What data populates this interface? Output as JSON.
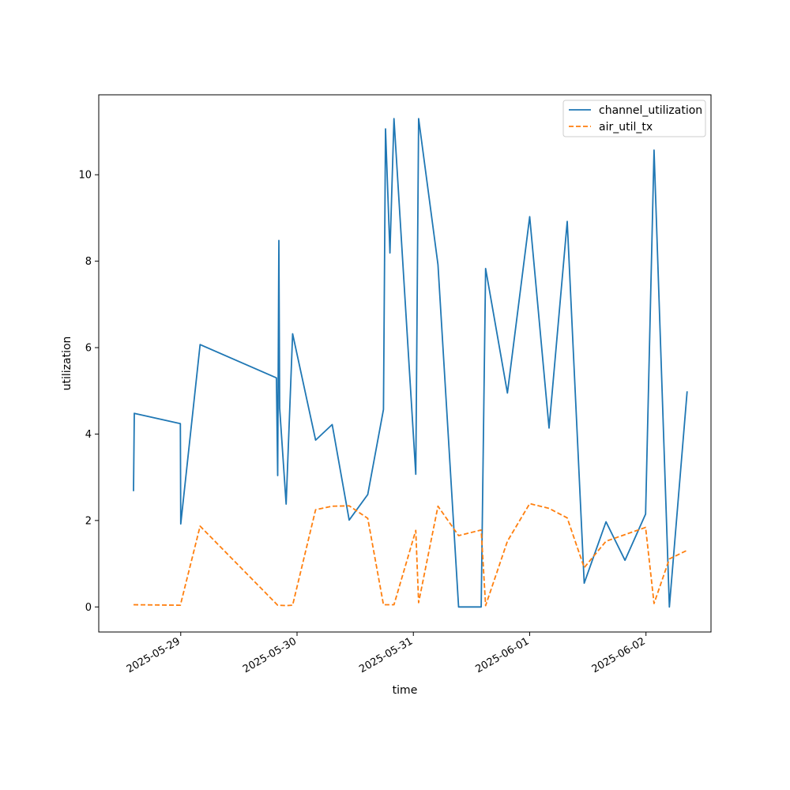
{
  "chart_data": {
    "type": "line",
    "xlabel": "time",
    "ylabel": "utilization",
    "x_ticks": [
      "2025-05-29",
      "2025-05-30",
      "2025-05-31",
      "2025-06-01",
      "2025-06-02"
    ],
    "y_ticks": [
      0,
      2,
      4,
      6,
      8,
      10
    ],
    "xlim": [
      "2025-05-28 07:05",
      "2025-06-02 13:25"
    ],
    "ylim": [
      -0.58,
      11.85
    ],
    "grid": false,
    "legend_position": "top-right",
    "series": [
      {
        "name": "channel_utilization",
        "color": "#1f77b4",
        "dash": "solid",
        "points": [
          [
            "2025-05-28 14:15",
            2.68
          ],
          [
            "2025-05-28 14:25",
            4.48
          ],
          [
            "2025-05-28 23:55",
            4.24
          ],
          [
            "2025-05-29 00:00",
            1.92
          ],
          [
            "2025-05-29 04:00",
            6.07
          ],
          [
            "2025-05-29 19:45",
            5.3
          ],
          [
            "2025-05-29 20:00",
            3.04
          ],
          [
            "2025-05-29 20:15",
            8.48
          ],
          [
            "2025-05-29 20:25",
            4.6
          ],
          [
            "2025-05-29 21:45",
            2.38
          ],
          [
            "2025-05-29 23:05",
            6.32
          ],
          [
            "2025-05-30 03:50",
            3.86
          ],
          [
            "2025-05-30 07:15",
            4.22
          ],
          [
            "2025-05-30 10:45",
            2.01
          ],
          [
            "2025-05-30 14:35",
            2.6
          ],
          [
            "2025-05-30 17:50",
            4.57
          ],
          [
            "2025-05-30 18:15",
            11.06
          ],
          [
            "2025-05-30 19:10",
            8.19
          ],
          [
            "2025-05-30 20:00",
            11.3
          ],
          [
            "2025-05-31 00:30",
            3.07
          ],
          [
            "2025-05-31 01:05",
            11.3
          ],
          [
            "2025-05-31 05:05",
            7.92
          ],
          [
            "2025-05-31 09:20",
            0.0
          ],
          [
            "2025-05-31 14:00",
            0.0
          ],
          [
            "2025-05-31 14:55",
            7.83
          ],
          [
            "2025-05-31 19:25",
            4.95
          ],
          [
            "2025-06-01 00:00",
            9.03
          ],
          [
            "2025-06-01 04:00",
            4.14
          ],
          [
            "2025-06-01 07:45",
            8.92
          ],
          [
            "2025-06-01 11:15",
            0.55
          ],
          [
            "2025-06-01 15:45",
            1.97
          ],
          [
            "2025-06-01 19:40",
            1.08
          ],
          [
            "2025-06-01 23:55",
            2.15
          ],
          [
            "2025-06-02 01:40",
            10.57
          ],
          [
            "2025-06-02 04:50",
            0.0
          ],
          [
            "2025-06-02 08:30",
            4.99
          ]
        ]
      },
      {
        "name": "air_util_tx",
        "color": "#ff7f0e",
        "dash": "dashed",
        "points": [
          [
            "2025-05-28 14:15",
            0.05
          ],
          [
            "2025-05-28 23:55",
            0.04
          ],
          [
            "2025-05-29 04:00",
            1.87
          ],
          [
            "2025-05-29 20:00",
            0.04
          ],
          [
            "2025-05-29 21:45",
            0.03
          ],
          [
            "2025-05-29 23:05",
            0.04
          ],
          [
            "2025-05-30 03:50",
            2.25
          ],
          [
            "2025-05-30 07:15",
            2.33
          ],
          [
            "2025-05-30 10:45",
            2.34
          ],
          [
            "2025-05-30 14:35",
            2.05
          ],
          [
            "2025-05-30 17:50",
            0.05
          ],
          [
            "2025-05-30 20:00",
            0.05
          ],
          [
            "2025-05-31 00:30",
            1.77
          ],
          [
            "2025-05-31 01:05",
            0.1
          ],
          [
            "2025-05-31 05:05",
            2.33
          ],
          [
            "2025-05-31 09:20",
            1.65
          ],
          [
            "2025-05-31 14:00",
            1.78
          ],
          [
            "2025-05-31 14:55",
            0.03
          ],
          [
            "2025-05-31 19:25",
            1.52
          ],
          [
            "2025-06-01 00:00",
            2.39
          ],
          [
            "2025-06-01 04:00",
            2.28
          ],
          [
            "2025-06-01 07:45",
            2.06
          ],
          [
            "2025-06-01 11:15",
            0.91
          ],
          [
            "2025-06-01 15:45",
            1.52
          ],
          [
            "2025-06-01 23:55",
            1.84
          ],
          [
            "2025-06-02 01:40",
            0.08
          ],
          [
            "2025-06-02 04:50",
            1.11
          ],
          [
            "2025-06-02 08:30",
            1.31
          ]
        ]
      }
    ]
  }
}
